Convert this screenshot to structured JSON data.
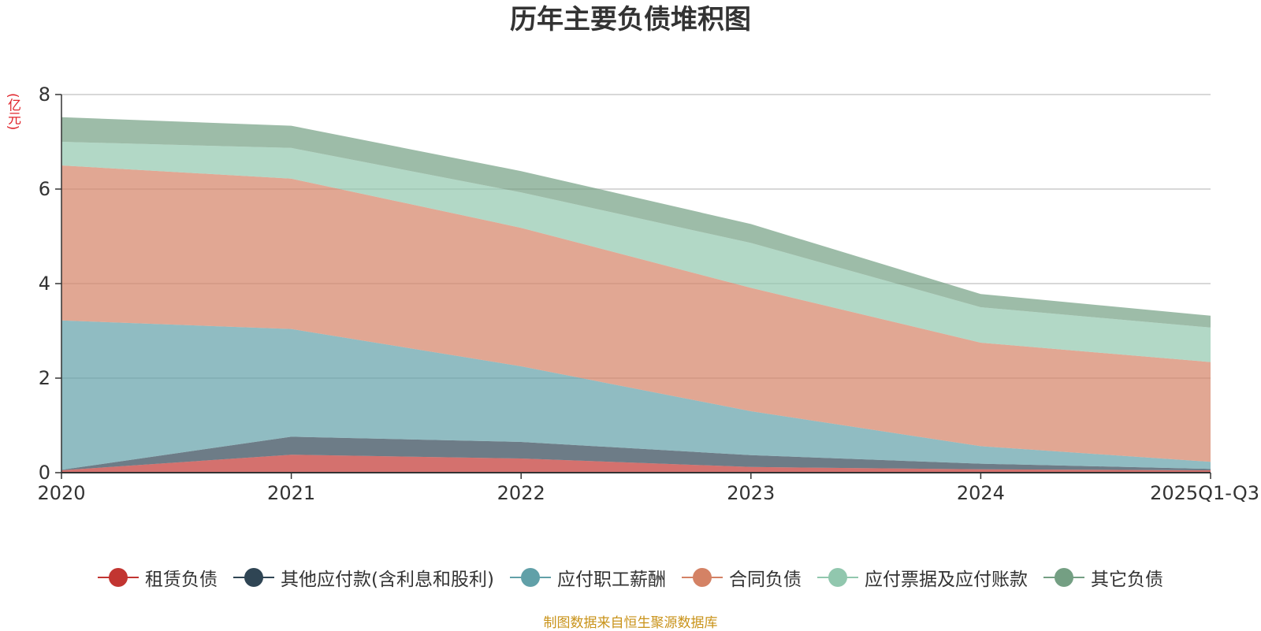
{
  "chart_data": {
    "type": "area",
    "stacked": true,
    "title": "历年主要负债堆积图",
    "unit": "(亿元)",
    "categories": [
      "2020",
      "2021",
      "2022",
      "2023",
      "2024",
      "2025Q1-Q3"
    ],
    "ylim": [
      0,
      8
    ],
    "yticks": [
      "0",
      "2",
      "4",
      "6",
      "8"
    ],
    "grid": true,
    "legend_position": "bottom",
    "series": [
      {
        "name": "租赁负债",
        "color": "#c23531",
        "values": [
          0.05,
          0.38,
          0.3,
          0.12,
          0.07,
          0.05
        ]
      },
      {
        "name": "其他应付款(含利息和股利)",
        "color": "#2f4554",
        "values": [
          0.01,
          0.38,
          0.35,
          0.25,
          0.12,
          0.03
        ]
      },
      {
        "name": "应付职工薪酬",
        "color": "#61a0a8",
        "values": [
          3.16,
          2.28,
          1.6,
          0.93,
          0.37,
          0.15
        ]
      },
      {
        "name": "合同负债",
        "color": "#d48265",
        "values": [
          3.28,
          3.18,
          2.93,
          2.61,
          2.19,
          2.11
        ]
      },
      {
        "name": "应付票据及应付账款",
        "color": "#91c7ae",
        "values": [
          0.5,
          0.65,
          0.75,
          0.95,
          0.75,
          0.73
        ]
      },
      {
        "name": "其它负债",
        "color": "#749f83",
        "values": [
          0.52,
          0.47,
          0.45,
          0.4,
          0.28,
          0.25
        ]
      }
    ]
  },
  "source_note": "制图数据来自恒生聚源数据库"
}
